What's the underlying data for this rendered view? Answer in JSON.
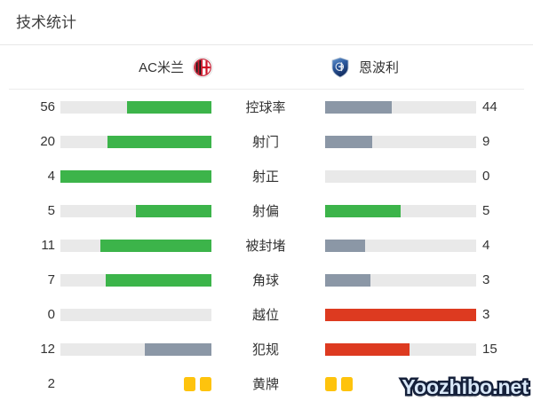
{
  "title": "技术统计",
  "teams": {
    "home": {
      "name": "AC米兰",
      "logo": "ac-milan-crest"
    },
    "away": {
      "name": "恩波利",
      "logo": "empoli-crest"
    }
  },
  "colors": {
    "green": "#3cb44a",
    "slate": "#8b97a6",
    "red": "#dd3a20",
    "track": "#e9e9e9",
    "card_yellow": "#fec30d"
  },
  "stats": [
    {
      "label": "控球率",
      "home": {
        "value": "56",
        "fill": 56,
        "color": "green"
      },
      "away": {
        "value": "44",
        "fill": 44,
        "color": "slate"
      }
    },
    {
      "label": "射门",
      "home": {
        "value": "20",
        "fill": 69,
        "color": "green"
      },
      "away": {
        "value": "9",
        "fill": 31,
        "color": "slate"
      }
    },
    {
      "label": "射正",
      "home": {
        "value": "4",
        "fill": 100,
        "color": "green"
      },
      "away": {
        "value": "0",
        "fill": 0,
        "color": "none"
      }
    },
    {
      "label": "射偏",
      "home": {
        "value": "5",
        "fill": 50,
        "color": "green"
      },
      "away": {
        "value": "5",
        "fill": 50,
        "color": "green"
      }
    },
    {
      "label": "被封堵",
      "home": {
        "value": "11",
        "fill": 73.3,
        "color": "green"
      },
      "away": {
        "value": "4",
        "fill": 26.7,
        "color": "slate"
      }
    },
    {
      "label": "角球",
      "home": {
        "value": "7",
        "fill": 70,
        "color": "green"
      },
      "away": {
        "value": "3",
        "fill": 30,
        "color": "slate"
      }
    },
    {
      "label": "越位",
      "home": {
        "value": "0",
        "fill": 0,
        "color": "none"
      },
      "away": {
        "value": "3",
        "fill": 100,
        "color": "red"
      }
    },
    {
      "label": "犯规",
      "home": {
        "value": "12",
        "fill": 44.4,
        "color": "slate"
      },
      "away": {
        "value": "15",
        "fill": 55.6,
        "color": "red"
      }
    },
    {
      "label": "黄牌",
      "home": {
        "value": "2",
        "cards": 2
      },
      "away": {
        "value": "",
        "cards": 2
      }
    }
  ],
  "watermark": {
    "text": "Yoozhibo.net"
  },
  "chart_data": {
    "type": "bar",
    "title": "技术统计 (AC米兰 vs 恩波利)",
    "categories": [
      "控球率",
      "射门",
      "射正",
      "射偏",
      "被封堵",
      "角球",
      "越位",
      "犯规",
      "黄牌"
    ],
    "series": [
      {
        "name": "AC米兰",
        "values": [
          56,
          20,
          4,
          5,
          11,
          7,
          0,
          12,
          2
        ]
      },
      {
        "name": "恩波利",
        "values": [
          44,
          9,
          0,
          5,
          4,
          3,
          3,
          15,
          2
        ]
      }
    ],
    "layout_hints": "paired horizontal bars filling outward from center labels; bar length = value / (home+away); green = better/tie, slate = lower, red = negative stat (offsides, fouls); yellow cards drawn as card icons"
  }
}
